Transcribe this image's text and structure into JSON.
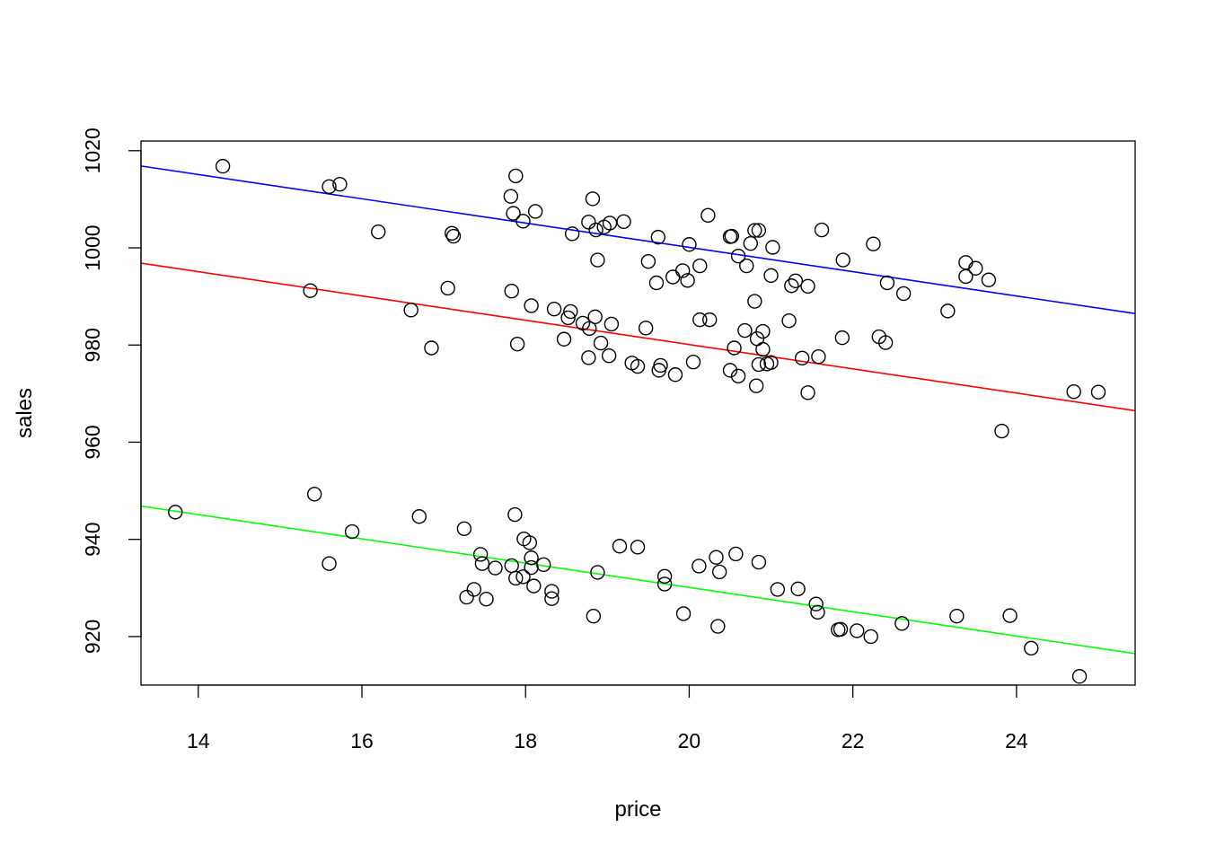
{
  "chart_data": {
    "type": "scatter",
    "title": "",
    "xlabel": "price",
    "ylabel": "sales",
    "xlim": [
      13.3,
      25.45
    ],
    "ylim": [
      910,
      1022
    ],
    "x_ticks": [
      14,
      16,
      18,
      20,
      22,
      24
    ],
    "y_ticks": [
      920,
      940,
      960,
      980,
      1000,
      1020
    ],
    "grid": false,
    "legend": "none",
    "marker": "open-circle",
    "colors": {
      "points": "#000000",
      "axes": "#000000",
      "line_blue": "#0000ff",
      "line_red": "#ff0000",
      "line_green": "#00ff00"
    },
    "points": [
      [
        14.3,
        1016.8
      ],
      [
        15.6,
        1012.6
      ],
      [
        15.73,
        1013.1
      ],
      [
        16.2,
        1003.3
      ],
      [
        17.1,
        1003.0
      ],
      [
        17.12,
        1002.4
      ],
      [
        17.82,
        1010.6
      ],
      [
        17.85,
        1007.1
      ],
      [
        17.88,
        1014.8
      ],
      [
        17.97,
        1005.5
      ],
      [
        18.12,
        1007.5
      ],
      [
        18.57,
        1002.9
      ],
      [
        18.77,
        1005.3
      ],
      [
        18.82,
        1010.1
      ],
      [
        18.86,
        1003.7
      ],
      [
        18.88,
        997.5
      ],
      [
        18.96,
        1004.3
      ],
      [
        19.03,
        1005.1
      ],
      [
        19.2,
        1005.4
      ],
      [
        19.5,
        997.2
      ],
      [
        19.6,
        992.8
      ],
      [
        19.62,
        1002.2
      ],
      [
        19.8,
        994.0
      ],
      [
        19.92,
        995.3
      ],
      [
        19.98,
        993.3
      ],
      [
        20.0,
        1000.7
      ],
      [
        20.13,
        996.3
      ],
      [
        20.23,
        1006.7
      ],
      [
        20.5,
        1002.3
      ],
      [
        20.52,
        1002.4
      ],
      [
        20.6,
        998.3
      ],
      [
        20.7,
        996.3
      ],
      [
        20.75,
        1000.9
      ],
      [
        20.8,
        1003.6
      ],
      [
        20.85,
        1003.6
      ],
      [
        21.0,
        994.3
      ],
      [
        21.02,
        1000.1
      ],
      [
        21.25,
        992.2
      ],
      [
        21.3,
        993.2
      ],
      [
        21.45,
        992.1
      ],
      [
        21.62,
        1003.7
      ],
      [
        21.88,
        997.5
      ],
      [
        22.25,
        1000.8
      ],
      [
        22.42,
        992.8
      ],
      [
        22.62,
        990.6
      ],
      [
        23.38,
        997.0
      ],
      [
        23.38,
        994.1
      ],
      [
        23.5,
        995.8
      ],
      [
        23.66,
        993.4
      ],
      [
        15.37,
        991.2
      ],
      [
        16.6,
        987.2
      ],
      [
        16.85,
        979.4
      ],
      [
        17.05,
        991.7
      ],
      [
        17.83,
        991.1
      ],
      [
        17.9,
        980.2
      ],
      [
        18.07,
        988.1
      ],
      [
        18.35,
        987.4
      ],
      [
        18.47,
        981.2
      ],
      [
        18.52,
        985.6
      ],
      [
        18.55,
        986.9
      ],
      [
        18.7,
        984.5
      ],
      [
        18.77,
        977.4
      ],
      [
        18.78,
        983.4
      ],
      [
        18.85,
        985.8
      ],
      [
        18.92,
        980.4
      ],
      [
        19.02,
        977.8
      ],
      [
        19.05,
        984.3
      ],
      [
        19.3,
        976.3
      ],
      [
        19.37,
        975.6
      ],
      [
        19.47,
        983.5
      ],
      [
        19.63,
        974.8
      ],
      [
        19.65,
        975.8
      ],
      [
        19.83,
        973.9
      ],
      [
        20.05,
        976.5
      ],
      [
        20.13,
        985.2
      ],
      [
        20.25,
        985.2
      ],
      [
        20.5,
        974.8
      ],
      [
        20.55,
        979.4
      ],
      [
        20.6,
        973.6
      ],
      [
        20.68,
        983.0
      ],
      [
        20.8,
        989.0
      ],
      [
        20.82,
        971.6
      ],
      [
        20.83,
        981.3
      ],
      [
        20.85,
        976.0
      ],
      [
        20.9,
        982.8
      ],
      [
        20.9,
        979.1
      ],
      [
        20.95,
        976.1
      ],
      [
        21.0,
        976.4
      ],
      [
        21.22,
        985.0
      ],
      [
        21.38,
        977.3
      ],
      [
        21.45,
        970.2
      ],
      [
        21.58,
        977.6
      ],
      [
        21.87,
        981.5
      ],
      [
        22.32,
        981.7
      ],
      [
        22.4,
        980.5
      ],
      [
        23.16,
        987.0
      ],
      [
        23.82,
        962.3
      ],
      [
        24.7,
        970.4
      ],
      [
        25.0,
        970.3
      ],
      [
        13.72,
        945.6
      ],
      [
        15.42,
        949.3
      ],
      [
        15.6,
        935.0
      ],
      [
        15.88,
        941.6
      ],
      [
        16.7,
        944.7
      ],
      [
        17.25,
        942.2
      ],
      [
        17.28,
        928.1
      ],
      [
        17.37,
        929.7
      ],
      [
        17.45,
        936.9
      ],
      [
        17.47,
        935.0
      ],
      [
        17.52,
        927.7
      ],
      [
        17.63,
        934.1
      ],
      [
        17.83,
        934.6
      ],
      [
        17.87,
        945.1
      ],
      [
        17.88,
        932.0
      ],
      [
        17.97,
        932.3
      ],
      [
        17.98,
        940.1
      ],
      [
        18.05,
        939.3
      ],
      [
        18.07,
        936.2
      ],
      [
        18.07,
        934.2
      ],
      [
        18.1,
        930.4
      ],
      [
        18.22,
        934.8
      ],
      [
        18.32,
        929.3
      ],
      [
        18.32,
        927.8
      ],
      [
        18.83,
        924.2
      ],
      [
        18.88,
        933.2
      ],
      [
        19.15,
        938.6
      ],
      [
        19.37,
        938.4
      ],
      [
        19.7,
        932.4
      ],
      [
        19.7,
        930.8
      ],
      [
        19.93,
        924.7
      ],
      [
        20.12,
        934.5
      ],
      [
        20.33,
        936.3
      ],
      [
        20.35,
        922.1
      ],
      [
        20.37,
        933.3
      ],
      [
        20.57,
        937.0
      ],
      [
        20.85,
        935.3
      ],
      [
        21.08,
        929.7
      ],
      [
        21.33,
        929.8
      ],
      [
        21.55,
        926.7
      ],
      [
        21.57,
        925.0
      ],
      [
        21.82,
        921.4
      ],
      [
        21.85,
        921.5
      ],
      [
        22.05,
        921.2
      ],
      [
        22.22,
        920.0
      ],
      [
        22.6,
        922.7
      ],
      [
        23.27,
        924.2
      ],
      [
        23.92,
        924.3
      ],
      [
        24.18,
        917.6
      ],
      [
        24.77,
        911.8
      ]
    ],
    "lines": [
      {
        "color": "#0000ff",
        "slope": -2.5,
        "intercept": 1050.1
      },
      {
        "color": "#ff0000",
        "slope": -2.5,
        "intercept": 1030.1
      },
      {
        "color": "#00ff00",
        "slope": -2.5,
        "intercept": 980.1
      }
    ]
  }
}
